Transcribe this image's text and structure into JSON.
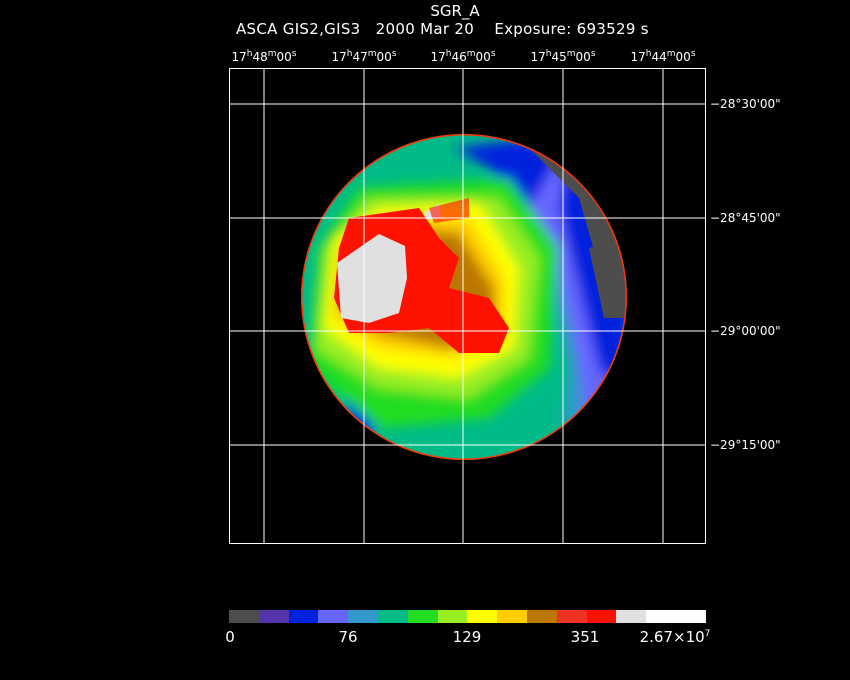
{
  "header": {
    "title": "SGR_A",
    "subtitle": "ASCA GIS2,GIS3   2000 Mar 20    Exposure: 693529 s"
  },
  "axes": {
    "ra_ticks": [
      {
        "h": "17",
        "m": "48",
        "s": "00"
      },
      {
        "h": "17",
        "m": "47",
        "s": "00"
      },
      {
        "h": "17",
        "m": "46",
        "s": "00"
      },
      {
        "h": "17",
        "m": "45",
        "s": "00"
      },
      {
        "h": "17",
        "m": "44",
        "s": "00"
      }
    ],
    "dec_ticks": [
      "−28°30'00\"",
      "−28°45'00\"",
      "−29°00'00\"",
      "−29°15'00\""
    ]
  },
  "colorbar": {
    "colors": [
      "#4d4d4d",
      "#5533aa",
      "#0022dd",
      "#6666ff",
      "#3399cc",
      "#00bb88",
      "#22dd22",
      "#99ee22",
      "#ffff00",
      "#ffcc00",
      "#bb7700",
      "#ee3322",
      "#ff1100",
      "#e0e0e0",
      "#ffffff",
      "#ffffff"
    ],
    "labels": [
      "0",
      "76",
      "129",
      "351"
    ],
    "max_label_base": "2.67×10",
    "max_label_exp": "7"
  }
}
